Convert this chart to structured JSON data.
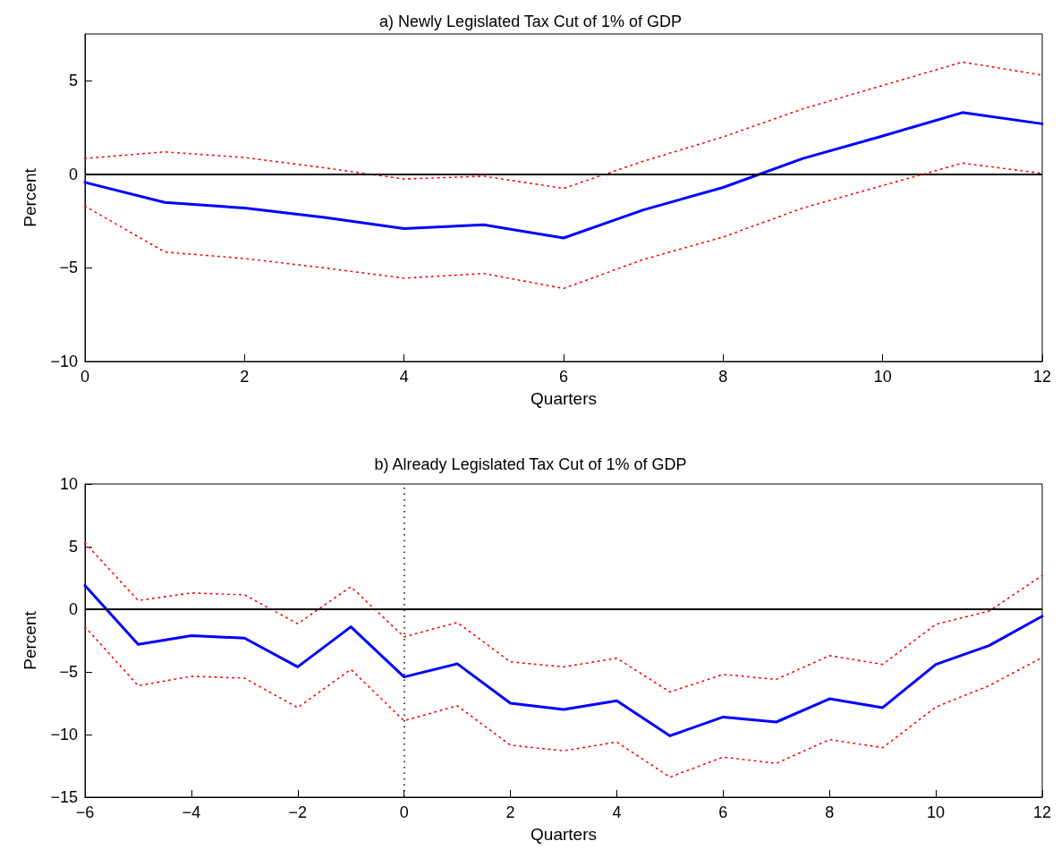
{
  "chart_data": [
    {
      "type": "line",
      "title": "a) Newly Legislated Tax Cut of 1% of GDP",
      "xlabel": "Quarters",
      "ylabel": "Percent",
      "x": [
        0,
        1,
        2,
        3,
        4,
        5,
        6,
        7,
        8,
        9,
        10,
        11,
        12
      ],
      "xlim": [
        0,
        12
      ],
      "xticks": [
        0,
        2,
        4,
        6,
        8,
        10,
        12
      ],
      "ylim": [
        -10,
        7.5
      ],
      "yticks": [
        -10,
        -5,
        0,
        5
      ],
      "marker": "none",
      "series": [
        {
          "color": "#0000ff",
          "line_style": "solid",
          "values": [
            -0.43,
            -1.5,
            -1.8,
            -2.3,
            -2.9,
            -2.7,
            -3.4,
            -1.9,
            -0.7,
            0.85,
            2.05,
            3.3,
            2.7
          ]
        },
        {
          "color": "#ff0000",
          "line_style": "dotted",
          "values": [
            0.85,
            1.2,
            0.9,
            0.35,
            -0.25,
            -0.1,
            -0.75,
            0.7,
            2.0,
            3.5,
            4.75,
            6.0,
            5.3
          ]
        },
        {
          "color": "#ff0000",
          "line_style": "dotted",
          "values": [
            -1.7,
            -4.15,
            -4.5,
            -5.0,
            -5.55,
            -5.3,
            -6.1,
            -4.55,
            -3.35,
            -1.8,
            -0.6,
            0.6,
            0.05
          ]
        }
      ],
      "ref_lines": [
        {
          "axis": "y",
          "value": 0,
          "color": "#000000",
          "line_style": "solid"
        }
      ]
    },
    {
      "type": "line",
      "title": "b) Already Legislated Tax Cut of 1% of GDP",
      "xlabel": "Quarters",
      "ylabel": "Percent",
      "x": [
        -6,
        -5,
        -4,
        -3,
        -2,
        -1,
        0,
        1,
        2,
        3,
        4,
        5,
        6,
        7,
        8,
        9,
        10,
        11,
        12
      ],
      "xlim": [
        -6,
        12
      ],
      "xticks": [
        -6,
        -4,
        -2,
        0,
        2,
        4,
        6,
        8,
        10,
        12
      ],
      "ylim": [
        -15,
        10
      ],
      "yticks": [
        -15,
        -10,
        -5,
        0,
        5,
        10
      ],
      "marker": "none",
      "series": [
        {
          "color": "#0000ff",
          "line_style": "solid",
          "values": [
            1.9,
            -2.8,
            -2.1,
            -2.3,
            -4.6,
            -1.4,
            -5.4,
            -4.35,
            -7.5,
            -8.0,
            -7.3,
            -10.1,
            -8.6,
            -9.0,
            -7.15,
            -7.85,
            -4.4,
            -2.9,
            -0.55
          ]
        },
        {
          "color": "#ff0000",
          "line_style": "dotted",
          "values": [
            5.3,
            0.7,
            1.3,
            1.15,
            -1.15,
            1.8,
            -2.2,
            -1.05,
            -4.2,
            -4.6,
            -3.9,
            -6.6,
            -5.2,
            -5.6,
            -3.7,
            -4.4,
            -1.2,
            -0.15,
            2.7
          ]
        },
        {
          "color": "#ff0000",
          "line_style": "dotted",
          "values": [
            -1.4,
            -6.1,
            -5.35,
            -5.5,
            -7.85,
            -4.8,
            -8.9,
            -7.7,
            -10.85,
            -11.3,
            -10.6,
            -13.4,
            -11.8,
            -12.3,
            -10.4,
            -11.05,
            -7.8,
            -6.1,
            -3.85
          ]
        }
      ],
      "ref_lines": [
        {
          "axis": "y",
          "value": 0,
          "color": "#000000",
          "line_style": "solid"
        },
        {
          "axis": "x",
          "value": 0,
          "color": "#000000",
          "line_style": "dotted"
        }
      ]
    }
  ]
}
